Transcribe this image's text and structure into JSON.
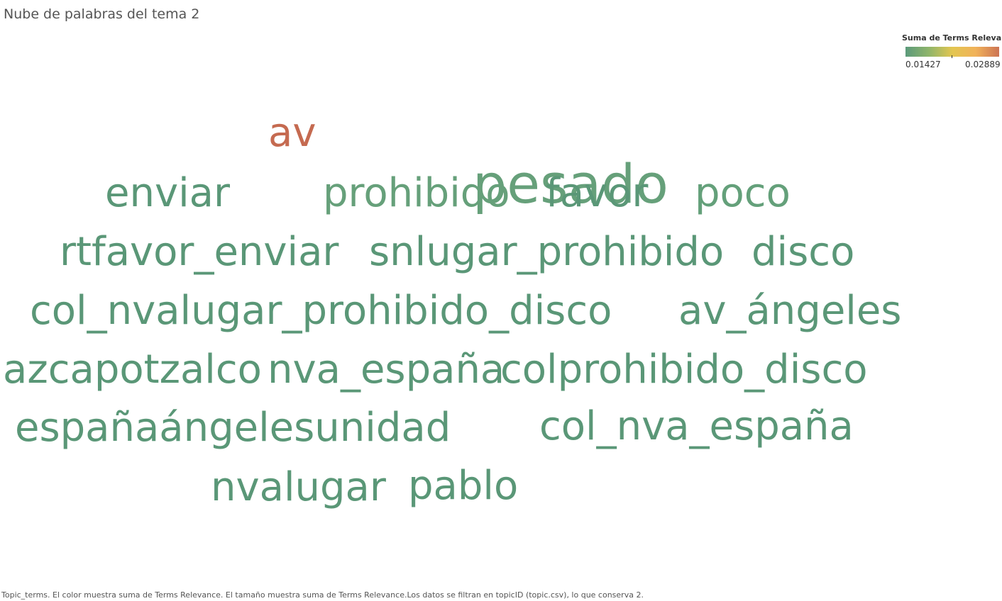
{
  "title": "Nube de palabras del tema 2",
  "legend": {
    "title": "Suma de Terms Relevan..",
    "min_label": "0.01427",
    "max_label": "0.02889",
    "min_value": 0.01427,
    "max_value": 0.02889,
    "colors": [
      "#5b9a7b",
      "#8fb56a",
      "#e3c651",
      "#f1b25a",
      "#cc7353"
    ]
  },
  "caption": "Topic_terms. El color muestra suma de Terms Relevance. El tamaño muestra suma de Terms Relevance.Los datos se filtran en topicID (topic.csv), lo que conserva 2.",
  "chart_data": {
    "type": "wordcloud",
    "measure": "Suma de Terms Relevance",
    "words": [
      {
        "text": "av",
        "value": 0.02889,
        "color": "#c56a50"
      },
      {
        "text": "enviar",
        "value": 0.0152,
        "color": "#5a9777"
      },
      {
        "text": "prohibido",
        "value": 0.0155,
        "color": "#66a07a"
      },
      {
        "text": "pesado",
        "value": 0.0155,
        "color": "#66a07a"
      },
      {
        "text": "favor",
        "value": 0.0152,
        "color": "#5a9777"
      },
      {
        "text": "poco",
        "value": 0.0153,
        "color": "#64a07a"
      },
      {
        "text": "rtfavor_enviar",
        "value": 0.0151,
        "color": "#5a9777"
      },
      {
        "text": "snlugar_prohibido",
        "value": 0.015,
        "color": "#5a9777"
      },
      {
        "text": "disco",
        "value": 0.015,
        "color": "#5a9777"
      },
      {
        "text": "col_nvalugar_prohibido_disco",
        "value": 0.015,
        "color": "#5a9777"
      },
      {
        "text": "av_ángeles",
        "value": 0.0149,
        "color": "#5a9777"
      },
      {
        "text": "azcapotzalco",
        "value": 0.0149,
        "color": "#5a9777"
      },
      {
        "text": "nva_españa",
        "value": 0.0149,
        "color": "#5a9777"
      },
      {
        "text": "colprohibido_disco",
        "value": 0.0149,
        "color": "#5a9777"
      },
      {
        "text": "españaángelesunidad",
        "value": 0.0147,
        "color": "#5a9777"
      },
      {
        "text": "col_nva_españa",
        "value": 0.0146,
        "color": "#5a9777"
      },
      {
        "text": "nvalugar",
        "value": 0.0145,
        "color": "#5a9777"
      },
      {
        "text": "pablo",
        "value": 0.01427,
        "color": "#5a9777"
      }
    ]
  }
}
